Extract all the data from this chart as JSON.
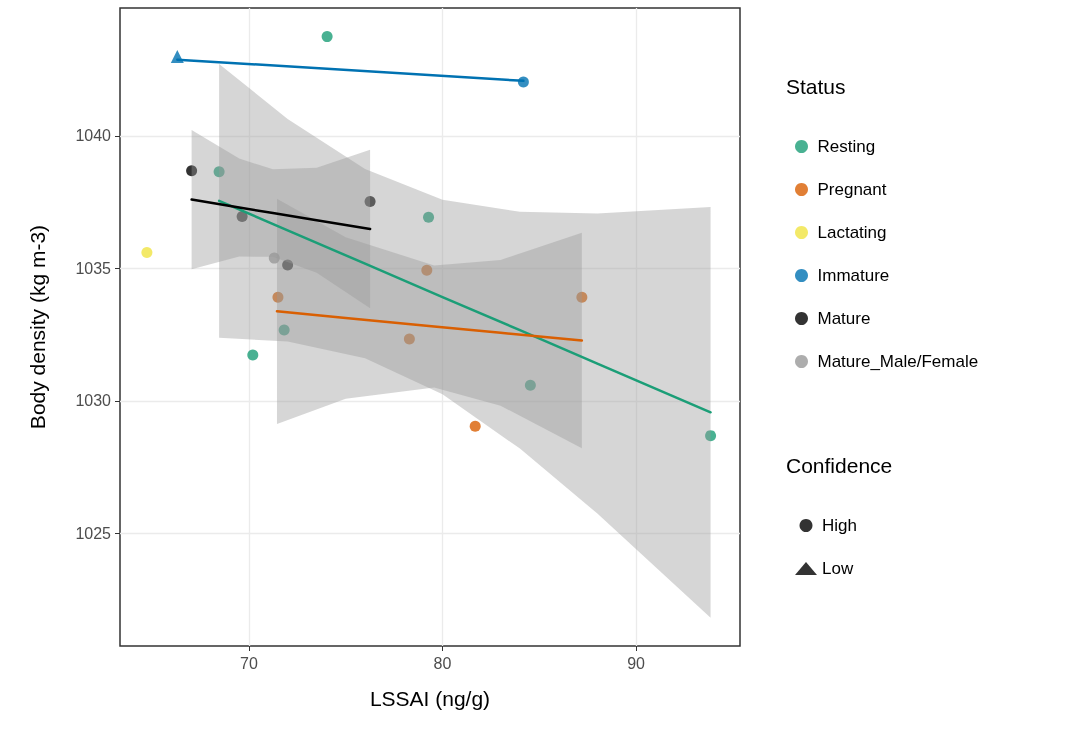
{
  "chart_data": {
    "type": "scatter",
    "xlabel": "LSSAI (ng/g)",
    "ylabel": "Body density (kg m-3)",
    "legend_title": "Status",
    "annotations": [
      "Confidence"
    ],
    "xlim": [
      63.34,
      95.37
    ],
    "xticks": [
      70,
      80,
      90
    ],
    "ylim": [
      1020.75,
      1044.83
    ],
    "yticks": [
      1025,
      1030,
      1035,
      1040
    ],
    "grid": true,
    "legend": "right",
    "series": [
      {
        "name": "Resting",
        "color": "#1b9e77",
        "marker": "circle",
        "x": [
          74.04,
          68.46,
          70.2,
          71.82,
          79.28,
          84.54,
          93.85
        ],
        "values": [
          1043.75,
          1038.65,
          1031.73,
          1032.68,
          1036.93,
          1030.59,
          1028.69
        ]
      },
      {
        "name": "Pregnant",
        "color": "#d95f02",
        "marker": "circle",
        "x": [
          71.5,
          78.29,
          79.19,
          87.2,
          81.69
        ],
        "values": [
          1033.91,
          1032.34,
          1034.93,
          1033.91,
          1029.04
        ]
      },
      {
        "name": "Lactating",
        "color": "#f0e442",
        "marker": "circle",
        "x": [
          64.73
        ],
        "values": [
          1035.6
        ]
      },
      {
        "name": "Immature",
        "color": "#0072b2",
        "marker": "circle",
        "x": [
          84.18
        ],
        "values": [
          1042.04
        ]
      },
      {
        "name": "Mature",
        "color": "#000000",
        "marker": "circle",
        "x": [
          67.04,
          69.65,
          72.0,
          76.26
        ],
        "values": [
          1038.69,
          1036.96,
          1035.13,
          1037.53
        ]
      },
      {
        "name": "Mature_Male/Female",
        "color": "#999999",
        "marker": "circle",
        "x": [
          71.31
        ],
        "values": [
          1035.39
        ]
      },
      {
        "color": "#0072b2",
        "marker": "triangle",
        "x": [
          66.3
        ],
        "values": [
          1043.0
        ]
      },
      {
        "type": "line",
        "color": "#1b9e77",
        "x": [
          68.46,
          72,
          76,
          80,
          84,
          88,
          93.85
        ],
        "values": [
          1037.55,
          1036.44,
          1035.18,
          1033.92,
          1032.67,
          1031.41,
          1029.57
        ],
        "lower": [
          1032.38,
          1032.24,
          1031.61,
          1030.25,
          1028.2,
          1025.75,
          1021.82
        ],
        "upper": [
          1042.72,
          1040.64,
          1038.75,
          1037.59,
          1037.14,
          1037.07,
          1037.32
        ]
      },
      {
        "type": "line",
        "color": "#d95f02",
        "x": [
          71.45,
          75,
          79.57,
          83,
          87.2
        ],
        "values": [
          1033.38,
          1033.13,
          1032.81,
          1032.57,
          1032.28
        ],
        "lower": [
          1029.13,
          1030.08,
          1030.51,
          1029.82,
          1028.21
        ],
        "upper": [
          1037.63,
          1036.18,
          1035.11,
          1035.32,
          1036.35
        ]
      },
      {
        "type": "line",
        "color": "#000000",
        "x": [
          67.04,
          69.5,
          71.24,
          73.5,
          76.26
        ],
        "values": [
          1037.6,
          1037.3,
          1037.09,
          1036.82,
          1036.49
        ],
        "lower": [
          1034.97,
          1035.45,
          1035.44,
          1034.84,
          1033.5
        ],
        "upper": [
          1040.23,
          1039.15,
          1038.74,
          1038.8,
          1039.48
        ]
      },
      {
        "type": "line",
        "color": "#0072b2",
        "x": [
          66.3,
          84.18
        ],
        "values": [
          1042.88,
          1042.08
        ]
      },
      {
        "name": "High",
        "color": "#000000",
        "marker": "circle"
      },
      {
        "name": "Low",
        "color": "#000000",
        "marker": "triangle"
      }
    ]
  }
}
